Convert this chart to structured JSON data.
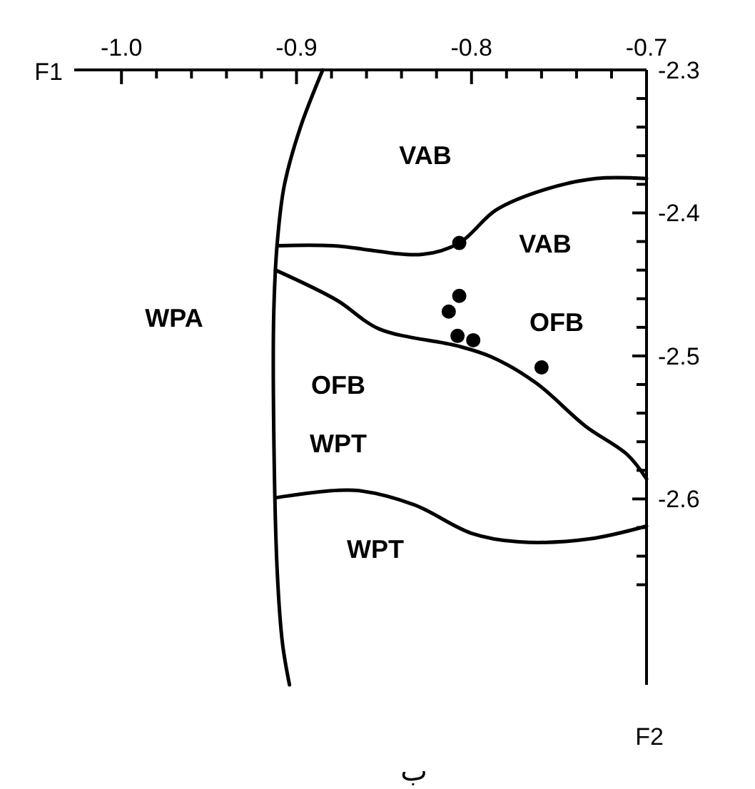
{
  "chart_data": {
    "type": "scatter",
    "xlabel": "F1",
    "xlim": [
      -1.027,
      -0.7
    ],
    "ylim": [
      -2.73,
      -2.3
    ],
    "xticks": [
      {
        "value": -1.0,
        "label": "-1.0"
      },
      {
        "value": -0.98,
        "label": null
      },
      {
        "value": -0.96,
        "label": null
      },
      {
        "value": -0.94,
        "label": null
      },
      {
        "value": -0.92,
        "label": null
      },
      -0.9,
      {
        "value": -0.88,
        "label": null
      },
      {
        "value": -0.86,
        "label": null
      },
      {
        "value": -0.84,
        "label": null
      },
      {
        "value": -0.82,
        "label": null
      },
      -0.8,
      {
        "value": -0.78,
        "label": null
      },
      {
        "value": -0.76,
        "label": null
      },
      {
        "value": -0.74,
        "label": null
      },
      {
        "value": -0.72,
        "label": null
      },
      -0.7
    ],
    "yticks": [
      -2.3,
      {
        "value": -2.32,
        "label": null
      },
      {
        "value": -2.34,
        "label": null
      },
      {
        "value": -2.36,
        "label": null
      },
      {
        "value": -2.38,
        "label": null
      },
      -2.4,
      {
        "value": -2.42,
        "label": null
      },
      {
        "value": -2.44,
        "label": null
      },
      {
        "value": -2.46,
        "label": null
      },
      {
        "value": -2.48,
        "label": null
      },
      -2.5,
      {
        "value": -2.52,
        "label": null
      },
      {
        "value": -2.54,
        "label": null
      },
      {
        "value": -2.56,
        "label": null
      },
      {
        "value": -2.58,
        "label": null
      },
      -2.6,
      {
        "value": -2.62,
        "label": null
      },
      {
        "value": -2.64,
        "label": null
      },
      {
        "value": -2.66,
        "label": null
      }
    ],
    "grid": false,
    "series": [
      {
        "color": "#000000",
        "marker": "circle",
        "x": [
          -0.807,
          -0.807,
          -0.813,
          -0.808,
          -0.799,
          -0.76
        ],
        "values": [
          -2.421,
          -2.458,
          -2.469,
          -2.486,
          -2.489,
          -2.508
        ]
      },
      {
        "type": "line",
        "color": "#000000",
        "marker": "none",
        "x": [
          -0.885,
          -0.898,
          -0.907,
          -0.911,
          -0.913,
          -0.913,
          -0.911,
          -0.908,
          -0.904
        ],
        "values": [
          -2.3,
          -2.341,
          -2.381,
          -2.421,
          -2.471,
          -2.551,
          -2.651,
          -2.701,
          -2.73
        ]
      },
      {
        "type": "line",
        "color": "#000000",
        "marker": "none",
        "x": [
          -0.911,
          -0.879,
          -0.828,
          -0.807,
          -0.786,
          -0.759,
          -0.729,
          -0.7
        ],
        "values": [
          -2.423,
          -2.423,
          -2.429,
          -2.421,
          -2.398,
          -2.384,
          -2.376,
          -2.376
        ]
      },
      {
        "type": "line",
        "color": "#000000",
        "marker": "none",
        "x": [
          -0.912,
          -0.877,
          -0.853,
          -0.808,
          -0.788,
          -0.763,
          -0.735,
          -0.711,
          -0.7
        ],
        "values": [
          -2.44,
          -2.461,
          -2.481,
          -2.493,
          -2.501,
          -2.519,
          -2.549,
          -2.569,
          -2.586
        ]
      },
      {
        "type": "line",
        "color": "#000000",
        "marker": "none",
        "x": [
          -0.911,
          -0.867,
          -0.833,
          -0.8,
          -0.773,
          -0.733,
          -0.7
        ],
        "values": [
          -2.599,
          -2.594,
          -2.604,
          -2.624,
          -2.63,
          -2.628,
          -2.619
        ]
      }
    ],
    "annotations": [
      "VAB",
      "VAB",
      "WPA",
      "OFB",
      "OFB",
      "WPT",
      "WPT",
      "F2",
      "ب"
    ]
  }
}
